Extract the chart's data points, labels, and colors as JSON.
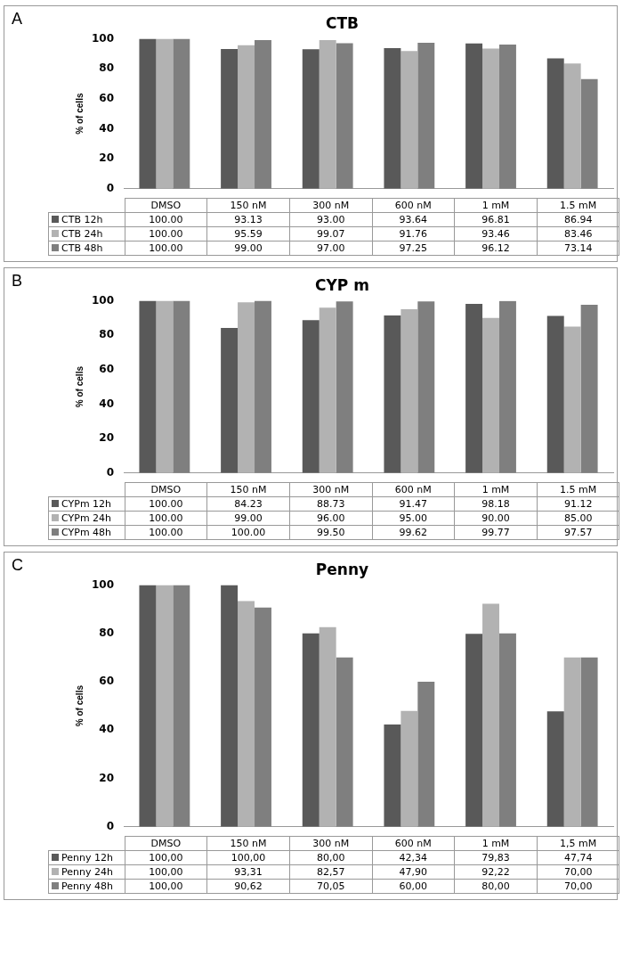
{
  "chart_data": [
    {
      "type": "bar",
      "title": "CTB",
      "ylabel": "% of cells",
      "annotations": [
        "A"
      ],
      "categories": [
        "DMSO",
        "150 nM",
        "300 nM",
        "600 nM",
        "1 mM",
        "1.5 mM"
      ],
      "ylim": [
        0,
        100
      ],
      "yticks": [
        0,
        20,
        40,
        60,
        80,
        100
      ],
      "grid": false,
      "legend": "bottom",
      "series": [
        {
          "name": "CTB 12h",
          "color": "#595959",
          "values": [
            100,
            93.13,
            93,
            93.64,
            96.81,
            86.94
          ],
          "value_labels": [
            "100.00",
            "93.13",
            "93.00",
            "93.64",
            "96.81",
            "86.94"
          ]
        },
        {
          "name": "CTB 24h",
          "color": "#b2b2b2",
          "values": [
            100,
            95.59,
            99.07,
            91.76,
            93.46,
            83.46
          ],
          "value_labels": [
            "100.00",
            "95.59",
            "99.07",
            "91.76",
            "93.46",
            "83.46"
          ]
        },
        {
          "name": "CTB 48h",
          "color": "#7f7f7f",
          "values": [
            100,
            99,
            97,
            97.25,
            96.12,
            73.14
          ],
          "value_labels": [
            "100.00",
            "99.00",
            "97.00",
            "97.25",
            "96.12",
            "73.14"
          ]
        }
      ]
    },
    {
      "type": "bar",
      "title": "CYP m",
      "ylabel": "% of cells",
      "annotations": [
        "B"
      ],
      "categories": [
        "DMSO",
        "150 nM",
        "300 nM",
        "600 nM",
        "1 mM",
        "1.5 mM"
      ],
      "ylim": [
        0,
        100
      ],
      "yticks": [
        0,
        20,
        40,
        60,
        80,
        100
      ],
      "grid": false,
      "legend": "bottom",
      "series": [
        {
          "name": "CYPm 12h",
          "color": "#595959",
          "values": [
            100,
            84.23,
            88.73,
            91.47,
            98.18,
            91.12
          ],
          "value_labels": [
            "100.00",
            "84.23",
            "88.73",
            "91.47",
            "98.18",
            "91.12"
          ]
        },
        {
          "name": "CYPm 24h",
          "color": "#b2b2b2",
          "values": [
            100,
            99,
            96,
            95,
            90,
            85
          ],
          "value_labels": [
            "100.00",
            "99.00",
            "96.00",
            "95.00",
            "90.00",
            "85.00"
          ]
        },
        {
          "name": "CYPm 48h",
          "color": "#7f7f7f",
          "values": [
            100,
            100,
            99.5,
            99.62,
            99.77,
            97.57
          ],
          "value_labels": [
            "100.00",
            "100.00",
            "99.50",
            "99.62",
            "99.77",
            "97.57"
          ]
        }
      ]
    },
    {
      "type": "bar",
      "title": "Penny",
      "ylabel": "% of cells",
      "annotations": [
        "C"
      ],
      "categories": [
        "DMSO",
        "150 nM",
        "300 nM",
        "600 nM",
        "1 mM",
        "1,5 mM"
      ],
      "ylim": [
        0,
        100
      ],
      "yticks": [
        0,
        20,
        40,
        60,
        80,
        100
      ],
      "grid": false,
      "legend": "bottom",
      "series": [
        {
          "name": "Penny 12h",
          "color": "#595959",
          "values": [
            100,
            100,
            80,
            42.34,
            79.83,
            47.74
          ],
          "value_labels": [
            "100,00",
            "100,00",
            "80,00",
            "42,34",
            "79,83",
            "47,74"
          ]
        },
        {
          "name": "Penny 24h",
          "color": "#b2b2b2",
          "values": [
            100,
            93.31,
            82.57,
            47.9,
            92.22,
            70
          ],
          "value_labels": [
            "100,00",
            "93,31",
            "82,57",
            "47,90",
            "92,22",
            "70,00"
          ]
        },
        {
          "name": "Penny 48h",
          "color": "#7f7f7f",
          "values": [
            100,
            90.62,
            70.05,
            60,
            80,
            70
          ],
          "value_labels": [
            "100,00",
            "90,62",
            "70,05",
            "60,00",
            "80,00",
            "70,00"
          ]
        }
      ]
    }
  ]
}
